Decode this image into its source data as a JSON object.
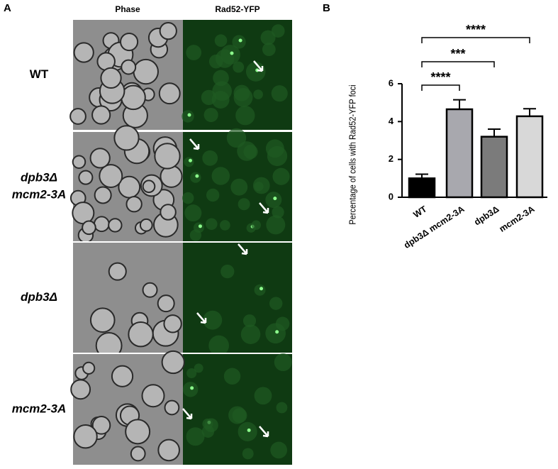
{
  "panel_a": {
    "label": "A",
    "columns": [
      "Phase",
      "Rad52-YFP"
    ],
    "rows": [
      [
        "WT"
      ],
      [
        "dpb3Δ",
        "mcm2-3A"
      ],
      [
        "dpb3Δ"
      ],
      [
        "mcm2-3A"
      ]
    ]
  },
  "panel_b_label": "B",
  "chart_data": {
    "type": "bar",
    "y_label": "Percentage of cells with Rad52-YFP foci",
    "categories": [
      "WT",
      "dpb3Δ mcm2-3A",
      "dpb3Δ",
      "mcm2-3A"
    ],
    "values": [
      1.0,
      4.65,
      3.2,
      4.28
    ],
    "errors": [
      0.22,
      0.5,
      0.4,
      0.4
    ],
    "colors": [
      "#000000",
      "#a8a8ae",
      "#7b7b7b",
      "#d8d8d8"
    ],
    "ylim": [
      0,
      6
    ],
    "yticks": [
      0,
      2,
      4,
      6
    ],
    "annotations": [
      "****",
      "***",
      "****"
    ]
  }
}
